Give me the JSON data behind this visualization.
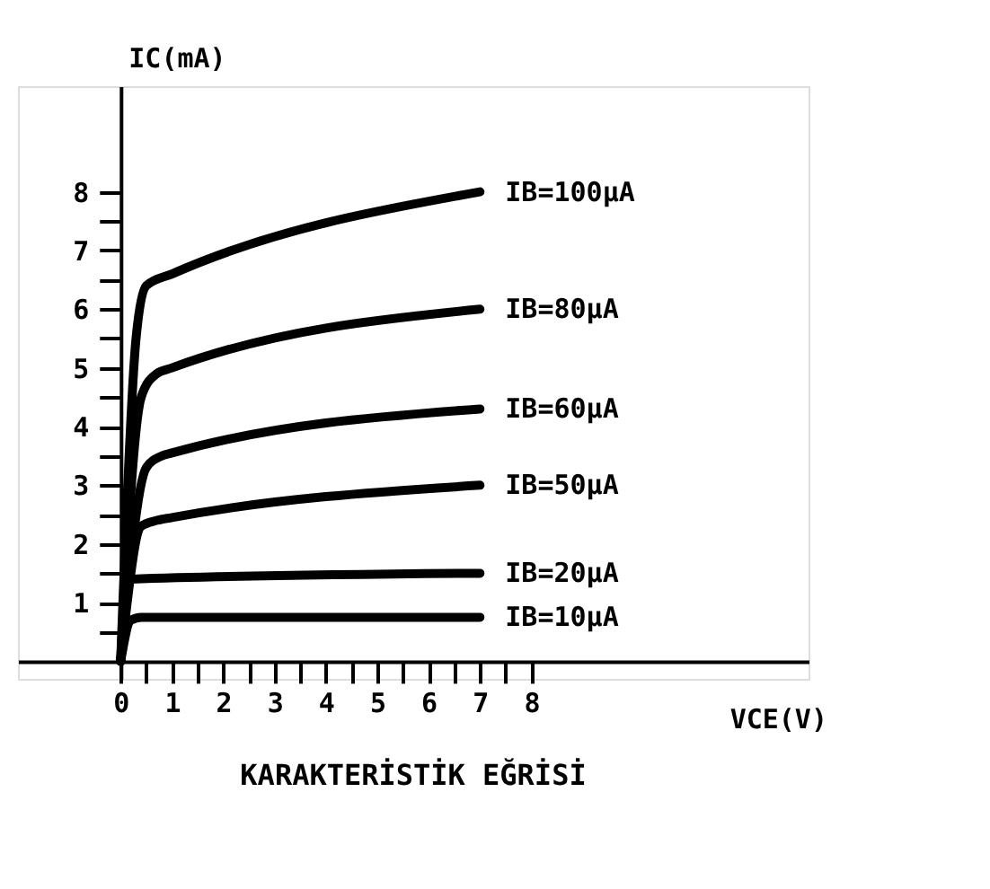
{
  "chart_data": {
    "type": "line",
    "title": "KARAKTERİSTİK EĞRİSİ",
    "xlabel": "VCE(V)",
    "ylabel": "IC(mA)",
    "xlim": [
      -2,
      13.4
    ],
    "ylim": [
      -0.3,
      9.8
    ],
    "xticks": [
      0,
      {
        "value": 0.5,
        "label": null
      },
      1,
      {
        "value": 1.5,
        "label": null
      },
      2,
      {
        "value": 2.5,
        "label": null
      },
      3,
      {
        "value": 3.5,
        "label": null
      },
      4,
      {
        "value": 4.5,
        "label": null
      },
      5,
      {
        "value": 5.5,
        "label": null
      },
      6,
      {
        "value": 6.5,
        "label": null
      },
      7,
      {
        "value": 7.5,
        "label": null
      },
      8
    ],
    "yticks": [
      {
        "value": 0.5,
        "label": null
      },
      1,
      {
        "value": 1.5,
        "label": null
      },
      2,
      {
        "value": 2.5,
        "label": null
      },
      3,
      {
        "value": 3.5,
        "label": null
      },
      4,
      {
        "value": 4.5,
        "label": null
      },
      5,
      {
        "value": 5.5,
        "label": null
      },
      6,
      {
        "value": 6.5,
        "label": null
      },
      7,
      {
        "value": 7.5,
        "label": null
      },
      8
    ],
    "grid": false,
    "legend": false,
    "marker": "none",
    "line_style": "solid",
    "series": [
      {
        "name": "IB=100µA",
        "color": "#000000",
        "x": [
          0,
          0.3,
          0.5,
          1,
          7
        ],
        "values": [
          0,
          5.5,
          6.4,
          6.6,
          8
        ]
      },
      {
        "name": "IB=80µA",
        "color": "#000000",
        "x": [
          0,
          0.4,
          0.7,
          1,
          7
        ],
        "values": [
          0,
          4.5,
          4.9,
          5,
          6
        ]
      },
      {
        "name": "IB=60µA",
        "color": "#000000",
        "x": [
          0,
          0.5,
          0.8,
          1,
          7
        ],
        "values": [
          0,
          3.3,
          3.5,
          3.55,
          4.3
        ]
      },
      {
        "name": "IB=50µA",
        "color": "#000000",
        "x": [
          0,
          0.4,
          0.7,
          1,
          7
        ],
        "values": [
          0,
          2.3,
          2.4,
          2.45,
          3
        ]
      },
      {
        "name": "IB=20µA",
        "color": "#000000",
        "x": [
          0,
          0.2,
          7
        ],
        "values": [
          0,
          1.4,
          1.5
        ]
      },
      {
        "name": "IB=10µA",
        "color": "#000000",
        "x": [
          0,
          0.2,
          0.4,
          7
        ],
        "values": [
          0,
          0.7,
          0.75,
          0.75
        ]
      }
    ]
  }
}
